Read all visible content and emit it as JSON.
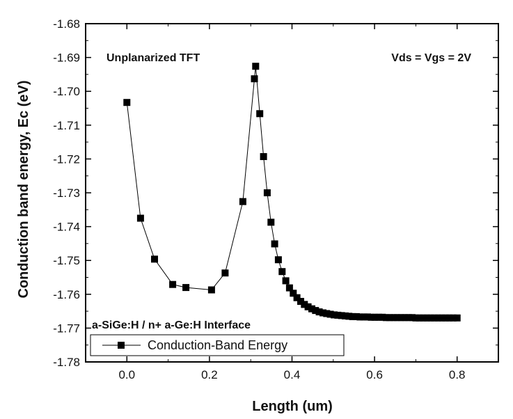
{
  "chart_data": {
    "type": "line",
    "title": "",
    "xlabel": "Length (um)",
    "ylabel": "Conduction band energy, Ec (eV)",
    "xlim": [
      -0.1,
      0.9
    ],
    "ylim": [
      -1.78,
      -1.68
    ],
    "x_ticks": [
      0.0,
      0.2,
      0.4,
      0.6,
      0.8
    ],
    "x_tick_labels": [
      "0.0",
      "0.2",
      "0.4",
      "0.6",
      "0.8"
    ],
    "y_ticks": [
      -1.68,
      -1.69,
      -1.7,
      -1.71,
      -1.72,
      -1.73,
      -1.74,
      -1.75,
      -1.76,
      -1.77,
      -1.78
    ],
    "y_tick_labels": [
      "-1.68",
      "-1.69",
      "-1.70",
      "-1.71",
      "-1.72",
      "-1.73",
      "-1.74",
      "-1.75",
      "-1.76",
      "-1.77",
      "-1.78"
    ],
    "annotations": {
      "top_left": "Unplanarized TFT",
      "top_right": "Vds = Vgs = 2V",
      "bottom_left": "a-SiGe:H / n+ a-Ge:H  Interface"
    },
    "legend": {
      "position": "bottom-left",
      "entries": [
        "Conduction-Band Energy"
      ]
    },
    "series": [
      {
        "name": "Conduction-Band Energy",
        "marker": "square",
        "color": "#000000",
        "x": [
          0.0,
          0.033,
          0.067,
          0.111,
          0.143,
          0.205,
          0.238,
          0.281,
          0.309,
          0.312,
          0.322,
          0.331,
          0.34,
          0.349,
          0.358,
          0.367,
          0.376,
          0.385,
          0.394,
          0.403,
          0.412,
          0.421,
          0.43,
          0.439,
          0.448,
          0.457,
          0.466,
          0.475,
          0.484,
          0.493,
          0.502,
          0.511,
          0.52,
          0.529,
          0.538,
          0.547,
          0.556,
          0.565,
          0.574,
          0.583,
          0.592,
          0.601,
          0.61,
          0.619,
          0.628,
          0.637,
          0.646,
          0.655,
          0.664,
          0.673,
          0.682,
          0.691,
          0.7,
          0.709,
          0.718,
          0.727,
          0.736,
          0.745,
          0.754,
          0.763,
          0.772,
          0.781,
          0.79,
          0.8
        ],
        "y": [
          -1.7033,
          -1.7375,
          -1.7496,
          -1.7571,
          -1.758,
          -1.7587,
          -1.7537,
          -1.7326,
          -1.6963,
          -1.6926,
          -1.7066,
          -1.7193,
          -1.73,
          -1.7387,
          -1.7451,
          -1.7498,
          -1.7533,
          -1.756,
          -1.7581,
          -1.7597,
          -1.761,
          -1.7621,
          -1.763,
          -1.7637,
          -1.7643,
          -1.7648,
          -1.7652,
          -1.7655,
          -1.7657,
          -1.7659,
          -1.7661,
          -1.7662,
          -1.7663,
          -1.7664,
          -1.7665,
          -1.7666,
          -1.7666,
          -1.7667,
          -1.7667,
          -1.7667,
          -1.7668,
          -1.7668,
          -1.7668,
          -1.7668,
          -1.7669,
          -1.7669,
          -1.7669,
          -1.7669,
          -1.7669,
          -1.7669,
          -1.7669,
          -1.7669,
          -1.767,
          -1.767,
          -1.767,
          -1.767,
          -1.767,
          -1.767,
          -1.767,
          -1.767,
          -1.767,
          -1.767,
          -1.767,
          -1.767
        ]
      }
    ]
  }
}
